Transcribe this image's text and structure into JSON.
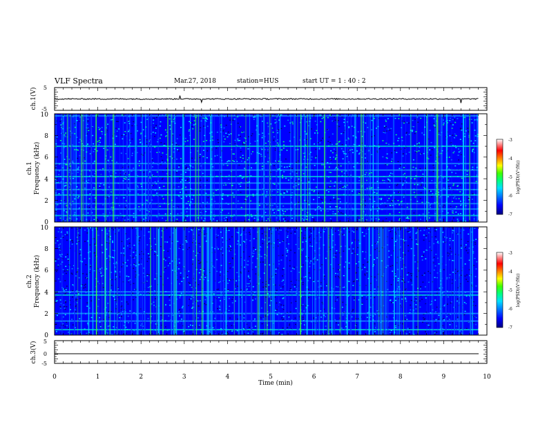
{
  "header": {
    "title": "VLF Spectra",
    "date": "Mar.27, 2018",
    "station": "station=HUS",
    "start": "start  UT =   1 : 40 : 2"
  },
  "colorbar": {
    "label": "log(PSD)(V²/Hz)",
    "ticks": [
      "-3",
      "-4",
      "-5",
      "-6",
      "-7"
    ],
    "colors": [
      "#000080",
      "#0000ff",
      "#0080ff",
      "#00e0ff",
      "#00ff80",
      "#40ff00",
      "#c0ff00",
      "#ffff00",
      "#ff8000",
      "#ff0000",
      "#ffffff"
    ]
  },
  "chart_data": [
    {
      "type": "line",
      "panel": "ch1-waveform",
      "ylabel": "ch.1(V)",
      "ylim": [
        -5,
        5
      ],
      "y_tick_labels": [
        "5",
        "-5"
      ],
      "xlim": [
        0,
        10
      ],
      "series": [
        {
          "description": "noisy trace near 0 V with small spikes",
          "x": [
            0,
            2.9,
            3.4,
            9.4,
            9.8
          ],
          "y": [
            0,
            0.5,
            -0.5,
            -0.6,
            0
          ]
        }
      ]
    },
    {
      "type": "heatmap",
      "panel": "ch1-spectrogram",
      "ylabel": "ch.1\nFrequency (kHz)",
      "ylim": [
        0,
        10
      ],
      "y_tick_labels": [
        "0",
        "2",
        "4",
        "6",
        "8",
        "10"
      ],
      "xlim": [
        0,
        9.8
      ],
      "zlim": [
        -7,
        -3
      ],
      "horizontal_lines_khz": [
        0.6,
        1.2,
        1.7,
        2.5,
        3.0,
        3.6,
        4.2,
        4.8,
        5.4,
        7.0,
        9.8
      ],
      "background_level": -6.3
    },
    {
      "type": "heatmap",
      "panel": "ch2-spectrogram",
      "ylabel": "ch.2\nFrequency (kHz)",
      "ylim": [
        0,
        10
      ],
      "y_tick_labels": [
        "0",
        "2",
        "4",
        "6",
        "8",
        "10"
      ],
      "xlim": [
        0,
        9.8
      ],
      "zlim": [
        -7,
        -3
      ],
      "horizontal_lines_khz": [
        0.5,
        1.3,
        2.0,
        3.7,
        4.0
      ],
      "background_level": -6.6
    },
    {
      "type": "line",
      "panel": "ch3-waveform",
      "ylabel": "ch.3(V)",
      "ylim": [
        -5,
        5
      ],
      "y_tick_labels": [
        "5",
        "0",
        "-5"
      ],
      "xlim": [
        0,
        10
      ],
      "series": [
        {
          "description": "flat line",
          "x": [
            0,
            9.8
          ],
          "y": [
            -1.3,
            -1.3
          ]
        }
      ]
    }
  ],
  "xaxis": {
    "label": "Time (min)",
    "ticks": [
      "0",
      "1",
      "2",
      "3",
      "4",
      "5",
      "6",
      "7",
      "8",
      "9",
      "10"
    ]
  }
}
